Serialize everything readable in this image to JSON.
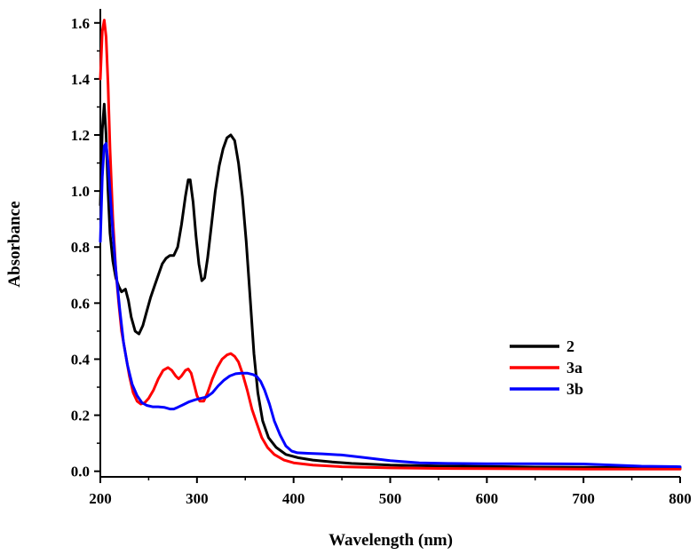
{
  "chart_data": {
    "type": "line",
    "title": "",
    "xlabel": "Wavelength (nm)",
    "ylabel": "Absorbance",
    "xlim": [
      200,
      800
    ],
    "ylim": [
      -0.02,
      1.65
    ],
    "xticks": [
      200,
      300,
      400,
      500,
      600,
      700,
      800
    ],
    "xtick_labels": [
      "200",
      "300",
      "400",
      "500",
      "600",
      "700",
      "800"
    ],
    "yticks": [
      0.0,
      0.2,
      0.4,
      0.6,
      0.8,
      1.0,
      1.2,
      1.4,
      1.6
    ],
    "ytick_labels": [
      "0.0",
      "0.2",
      "0.4",
      "0.6",
      "0.8",
      "1.0",
      "1.2",
      "1.4",
      "1.6"
    ],
    "grid": false,
    "legend_position": "center-right",
    "series": [
      {
        "name": "2",
        "color": "#000000",
        "points": [
          [
            200,
            0.95
          ],
          [
            202,
            1.22
          ],
          [
            204,
            1.31
          ],
          [
            206,
            1.2
          ],
          [
            208,
            1.0
          ],
          [
            210,
            0.85
          ],
          [
            213,
            0.75
          ],
          [
            216,
            0.69
          ],
          [
            219,
            0.66
          ],
          [
            222,
            0.64
          ],
          [
            226,
            0.65
          ],
          [
            229,
            0.61
          ],
          [
            232,
            0.55
          ],
          [
            236,
            0.5
          ],
          [
            240,
            0.49
          ],
          [
            244,
            0.52
          ],
          [
            248,
            0.57
          ],
          [
            252,
            0.62
          ],
          [
            256,
            0.66
          ],
          [
            260,
            0.7
          ],
          [
            264,
            0.74
          ],
          [
            268,
            0.76
          ],
          [
            272,
            0.77
          ],
          [
            276,
            0.77
          ],
          [
            280,
            0.8
          ],
          [
            284,
            0.88
          ],
          [
            288,
            0.98
          ],
          [
            291,
            1.04
          ],
          [
            293,
            1.04
          ],
          [
            296,
            0.96
          ],
          [
            299,
            0.84
          ],
          [
            302,
            0.74
          ],
          [
            305,
            0.68
          ],
          [
            308,
            0.69
          ],
          [
            311,
            0.76
          ],
          [
            315,
            0.88
          ],
          [
            319,
            1.0
          ],
          [
            323,
            1.09
          ],
          [
            327,
            1.15
          ],
          [
            331,
            1.19
          ],
          [
            335,
            1.2
          ],
          [
            339,
            1.18
          ],
          [
            343,
            1.1
          ],
          [
            347,
            0.98
          ],
          [
            351,
            0.82
          ],
          [
            355,
            0.62
          ],
          [
            359,
            0.42
          ],
          [
            363,
            0.28
          ],
          [
            368,
            0.18
          ],
          [
            374,
            0.12
          ],
          [
            382,
            0.085
          ],
          [
            392,
            0.06
          ],
          [
            405,
            0.048
          ],
          [
            420,
            0.04
          ],
          [
            440,
            0.033
          ],
          [
            460,
            0.028
          ],
          [
            500,
            0.022
          ],
          [
            550,
            0.019
          ],
          [
            600,
            0.017
          ],
          [
            650,
            0.015
          ],
          [
            700,
            0.014
          ],
          [
            750,
            0.013
          ],
          [
            800,
            0.012
          ]
        ]
      },
      {
        "name": "3a",
        "color": "#ff0000",
        "points": [
          [
            200,
            1.4
          ],
          [
            202,
            1.57
          ],
          [
            204,
            1.61
          ],
          [
            206,
            1.55
          ],
          [
            208,
            1.38
          ],
          [
            210,
            1.15
          ],
          [
            213,
            0.9
          ],
          [
            216,
            0.72
          ],
          [
            219,
            0.6
          ],
          [
            222,
            0.5
          ],
          [
            226,
            0.42
          ],
          [
            230,
            0.34
          ],
          [
            234,
            0.28
          ],
          [
            238,
            0.25
          ],
          [
            242,
            0.24
          ],
          [
            246,
            0.245
          ],
          [
            250,
            0.26
          ],
          [
            255,
            0.29
          ],
          [
            260,
            0.33
          ],
          [
            265,
            0.36
          ],
          [
            270,
            0.37
          ],
          [
            274,
            0.36
          ],
          [
            278,
            0.34
          ],
          [
            281,
            0.33
          ],
          [
            284,
            0.34
          ],
          [
            288,
            0.36
          ],
          [
            291,
            0.365
          ],
          [
            294,
            0.35
          ],
          [
            297,
            0.31
          ],
          [
            300,
            0.27
          ],
          [
            303,
            0.25
          ],
          [
            307,
            0.25
          ],
          [
            311,
            0.28
          ],
          [
            316,
            0.33
          ],
          [
            321,
            0.37
          ],
          [
            326,
            0.4
          ],
          [
            331,
            0.415
          ],
          [
            335,
            0.42
          ],
          [
            339,
            0.41
          ],
          [
            343,
            0.39
          ],
          [
            347,
            0.35
          ],
          [
            352,
            0.29
          ],
          [
            357,
            0.22
          ],
          [
            362,
            0.17
          ],
          [
            367,
            0.12
          ],
          [
            373,
            0.085
          ],
          [
            380,
            0.06
          ],
          [
            390,
            0.04
          ],
          [
            400,
            0.03
          ],
          [
            420,
            0.022
          ],
          [
            450,
            0.016
          ],
          [
            500,
            0.012
          ],
          [
            550,
            0.01
          ],
          [
            600,
            0.009
          ],
          [
            700,
            0.008
          ],
          [
            800,
            0.008
          ]
        ]
      },
      {
        "name": "3b",
        "color": "#0000ff",
        "points": [
          [
            200,
            0.82
          ],
          [
            202,
            1.05
          ],
          [
            204,
            1.16
          ],
          [
            206,
            1.17
          ],
          [
            208,
            1.1
          ],
          [
            210,
            1.0
          ],
          [
            213,
            0.85
          ],
          [
            216,
            0.72
          ],
          [
            220,
            0.58
          ],
          [
            224,
            0.46
          ],
          [
            228,
            0.38
          ],
          [
            233,
            0.31
          ],
          [
            238,
            0.27
          ],
          [
            243,
            0.245
          ],
          [
            248,
            0.235
          ],
          [
            254,
            0.23
          ],
          [
            260,
            0.23
          ],
          [
            266,
            0.228
          ],
          [
            272,
            0.222
          ],
          [
            276,
            0.222
          ],
          [
            280,
            0.228
          ],
          [
            286,
            0.238
          ],
          [
            292,
            0.248
          ],
          [
            298,
            0.255
          ],
          [
            304,
            0.26
          ],
          [
            310,
            0.265
          ],
          [
            316,
            0.28
          ],
          [
            322,
            0.305
          ],
          [
            328,
            0.325
          ],
          [
            334,
            0.34
          ],
          [
            340,
            0.348
          ],
          [
            346,
            0.35
          ],
          [
            352,
            0.35
          ],
          [
            358,
            0.345
          ],
          [
            362,
            0.338
          ],
          [
            366,
            0.32
          ],
          [
            370,
            0.29
          ],
          [
            375,
            0.24
          ],
          [
            380,
            0.18
          ],
          [
            386,
            0.13
          ],
          [
            392,
            0.09
          ],
          [
            398,
            0.072
          ],
          [
            404,
            0.066
          ],
          [
            415,
            0.064
          ],
          [
            430,
            0.062
          ],
          [
            450,
            0.058
          ],
          [
            470,
            0.05
          ],
          [
            500,
            0.038
          ],
          [
            530,
            0.03
          ],
          [
            560,
            0.028
          ],
          [
            600,
            0.027
          ],
          [
            650,
            0.027
          ],
          [
            700,
            0.026
          ],
          [
            730,
            0.022
          ],
          [
            760,
            0.018
          ],
          [
            800,
            0.016
          ]
        ]
      }
    ]
  }
}
